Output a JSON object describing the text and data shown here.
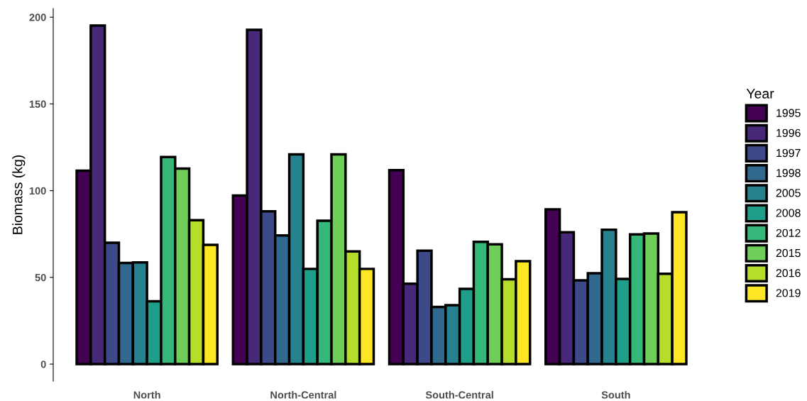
{
  "chart_data": {
    "type": "bar",
    "ylabel": "Biomass (kg)",
    "legend_title": "Year",
    "categories": [
      "North",
      "North-Central",
      "South-Central",
      "South"
    ],
    "ylim": [
      -9.8,
      205
    ],
    "yticks": [
      0,
      50,
      100,
      150,
      200
    ],
    "grid": false,
    "legend": "right",
    "series": [
      {
        "name": "1995",
        "color": "#440154",
        "values": [
          111.5,
          97.2,
          111.8,
          89.2
        ]
      },
      {
        "name": "1996",
        "color": "#482878",
        "values": [
          195.2,
          192.7,
          46.4,
          76
        ]
      },
      {
        "name": "1997",
        "color": "#3e4989",
        "values": [
          70,
          88.1,
          65.4,
          48.3
        ]
      },
      {
        "name": "1998",
        "color": "#31688e",
        "values": [
          58.3,
          74.2,
          33,
          52.4
        ]
      },
      {
        "name": "2005",
        "color": "#26828e",
        "values": [
          58.6,
          120.9,
          34,
          77.5
        ]
      },
      {
        "name": "2008",
        "color": "#1f9e89",
        "values": [
          36.2,
          54.9,
          43.4,
          49.1
        ]
      },
      {
        "name": "2012",
        "color": "#35b779",
        "values": [
          119.4,
          82.7,
          70.5,
          74.8
        ]
      },
      {
        "name": "2015",
        "color": "#6ece58",
        "values": [
          112.7,
          120.9,
          69.1,
          75.3
        ]
      },
      {
        "name": "2016",
        "color": "#b5de2b",
        "values": [
          83,
          65,
          48.9,
          52.1
        ]
      },
      {
        "name": "2019",
        "color": "#fde725",
        "values": [
          68.8,
          54.9,
          59.3,
          87.6
        ]
      }
    ]
  }
}
